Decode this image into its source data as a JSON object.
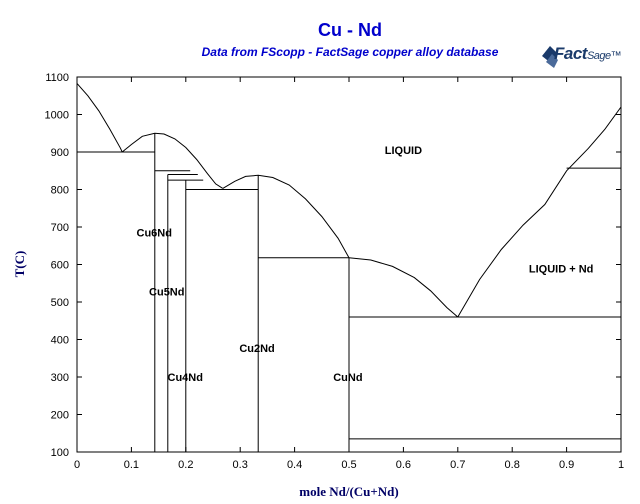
{
  "chart_data": {
    "type": "line",
    "title": "Cu - Nd",
    "subtitle": "Data from FScopp - FactSage copper alloy database",
    "xlabel": "mole Nd/(Cu+Nd)",
    "ylabel": "T(C)",
    "xlim": [
      0,
      1
    ],
    "ylim": [
      100,
      1100
    ],
    "xticks": [
      0,
      0.1,
      0.2,
      0.3,
      0.4,
      0.5,
      0.6,
      0.7,
      0.8,
      0.9,
      1
    ],
    "xtick_labels": [
      "0",
      "0.1",
      "0.2",
      "0.3",
      "0.4",
      "0.5",
      "0.6",
      "0.7",
      "0.8",
      "0.9",
      "1"
    ],
    "yticks": [
      100,
      200,
      300,
      400,
      500,
      600,
      700,
      800,
      900,
      1000,
      1100
    ],
    "ytick_labels": [
      "100",
      "200",
      "300",
      "400",
      "500",
      "600",
      "700",
      "800",
      "900",
      "1000",
      "1100"
    ],
    "grid": false,
    "series": [
      {
        "x": [
          0,
          0.02,
          0.04,
          0.06,
          0.08,
          0.083
        ],
        "y": [
          1083,
          1050,
          1010,
          962,
          910,
          900
        ]
      },
      {
        "x": [
          0.083,
          0.1,
          0.12,
          0.143,
          0.16,
          0.18,
          0.2,
          0.22,
          0.24,
          0.255,
          0.268
        ],
        "y": [
          900,
          920,
          942,
          950,
          948,
          935,
          912,
          880,
          842,
          815,
          803
        ]
      },
      {
        "x": [
          0.268,
          0.29,
          0.31,
          0.333,
          0.36,
          0.39,
          0.42,
          0.45,
          0.48,
          0.5
        ],
        "y": [
          803,
          822,
          835,
          838,
          832,
          812,
          775,
          728,
          670,
          618
        ]
      },
      {
        "x": [
          0.5,
          0.54,
          0.58,
          0.62,
          0.65,
          0.68,
          0.7
        ],
        "y": [
          618,
          612,
          595,
          565,
          530,
          485,
          460
        ]
      },
      {
        "x": [
          0.7,
          0.74,
          0.78,
          0.82,
          0.86,
          0.9,
          0.94,
          0.97,
          1
        ],
        "y": [
          460,
          560,
          640,
          705,
          760,
          850,
          910,
          960,
          1020
        ]
      },
      {
        "x": [
          0,
          0.143
        ],
        "y": [
          900,
          900
        ]
      },
      {
        "x": [
          0.143,
          0.208
        ],
        "y": [
          850,
          850
        ]
      },
      {
        "x": [
          0.167,
          0.222
        ],
        "y": [
          840,
          840
        ]
      },
      {
        "x": [
          0.167,
          0.232
        ],
        "y": [
          825,
          825
        ]
      },
      {
        "x": [
          0.2,
          0.333
        ],
        "y": [
          800,
          800
        ]
      },
      {
        "x": [
          0.333,
          0.5
        ],
        "y": [
          618,
          618
        ]
      },
      {
        "x": [
          0.5,
          1
        ],
        "y": [
          460,
          460
        ]
      },
      {
        "x": [
          0.5,
          1
        ],
        "y": [
          135,
          135
        ]
      },
      {
        "x": [
          0.9,
          1
        ],
        "y": [
          857,
          857
        ]
      },
      {
        "x": [
          0.143,
          0.143
        ],
        "y": [
          100,
          950
        ]
      },
      {
        "x": [
          0.167,
          0.167
        ],
        "y": [
          100,
          840
        ]
      },
      {
        "x": [
          0.2,
          0.2
        ],
        "y": [
          100,
          825
        ]
      },
      {
        "x": [
          0.333,
          0.333
        ],
        "y": [
          100,
          838
        ]
      },
      {
        "x": [
          0.5,
          0.5
        ],
        "y": [
          100,
          618
        ]
      }
    ],
    "annotations": [
      {
        "text": "LIQUID",
        "x": 0.6,
        "y": 905
      },
      {
        "text": "LIQUID + Nd",
        "x": 0.89,
        "y": 590
      },
      {
        "text": "Cu6Nd",
        "x": 0.142,
        "y": 685
      },
      {
        "text": "Cu5Nd",
        "x": 0.165,
        "y": 528
      },
      {
        "text": "Cu4Nd",
        "x": 0.199,
        "y": 300
      },
      {
        "text": "Cu2Nd",
        "x": 0.331,
        "y": 378
      },
      {
        "text": "CuNd",
        "x": 0.498,
        "y": 300
      }
    ]
  },
  "logo": {
    "name": "factsage-logo",
    "text_bold": "Fact",
    "text_thin": "Sage",
    "mark": "™"
  }
}
